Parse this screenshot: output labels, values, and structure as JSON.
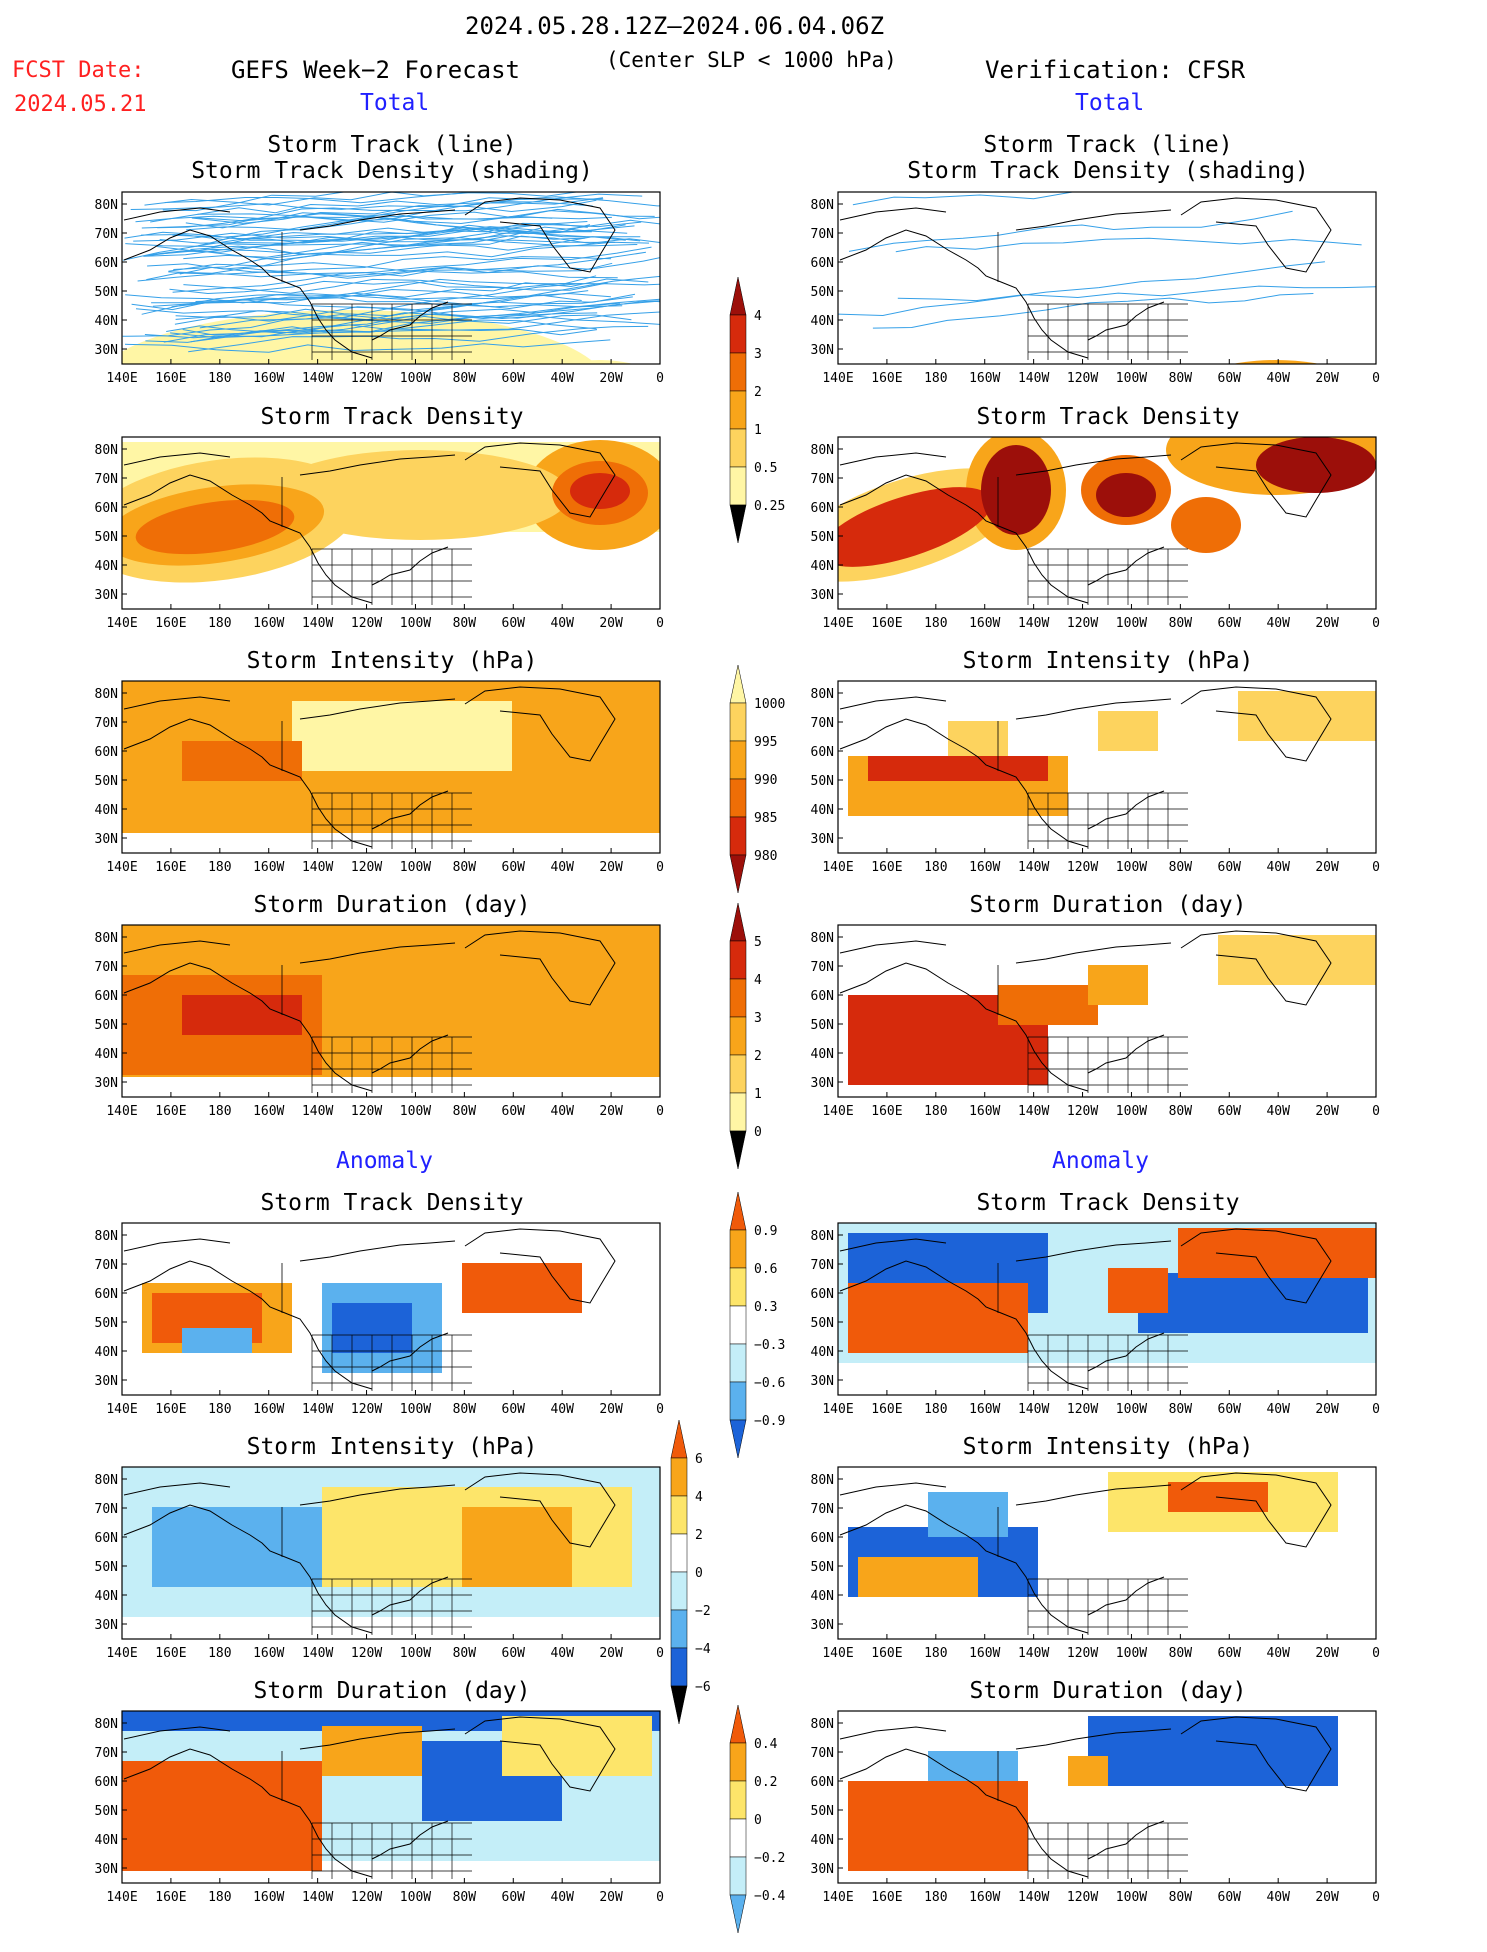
{
  "header": {
    "date_range": "2024.05.28.12Z–2024.06.04.06Z",
    "criterion": "(Center SLP < 1000 hPa)",
    "fcst_label": "FCST Date:",
    "fcst_date": "2024.05.21",
    "left_title": "GEFS Week−2 Forecast",
    "right_title": "Verification: CFSR"
  },
  "sections": {
    "total": "Total",
    "anomaly": "Anomaly"
  },
  "panel_titles": {
    "track_line": "Storm Track (line)",
    "track_shading": "Storm Track Density (shading)",
    "density": "Storm Track Density",
    "intensity": "Storm Intensity (hPa)",
    "duration": "Storm Duration (day)"
  },
  "axes": {
    "lon_labels": [
      "140E",
      "160E",
      "180",
      "160W",
      "140W",
      "120W",
      "100W",
      "80W",
      "60W",
      "40W",
      "20W",
      "0"
    ],
    "lat_labels": [
      "80N",
      "70N",
      "60N",
      "50N",
      "40N",
      "30N"
    ]
  },
  "colorbars": {
    "density": [
      "4",
      "3",
      "2",
      "1",
      "0.5",
      "0.25"
    ],
    "intensity": [
      "1000",
      "995",
      "990",
      "985",
      "980"
    ],
    "duration": [
      "5",
      "4",
      "3",
      "2",
      "1",
      "0"
    ],
    "density_anom": [
      "0.9",
      "0.6",
      "0.3",
      "−0.3",
      "−0.6",
      "−0.9"
    ],
    "intensity_anom": [
      "6",
      "4",
      "2",
      "0",
      "−2",
      "−4",
      "−6"
    ],
    "duration_anom": [
      "0.4",
      "0.2",
      "0",
      "−0.2",
      "−0.4"
    ]
  },
  "colors": {
    "seq": [
      "#fff6a5",
      "#fdd35e",
      "#f8a51a",
      "#ef6e06",
      "#d62a0c",
      "#9c0f0a"
    ],
    "div_warm": [
      "#fde56a",
      "#f8a51a",
      "#f05a0a"
    ],
    "div_cool": [
      "#c4eef8",
      "#5bb1ee",
      "#1c63d8"
    ],
    "track_line": "#35a0e8"
  }
}
